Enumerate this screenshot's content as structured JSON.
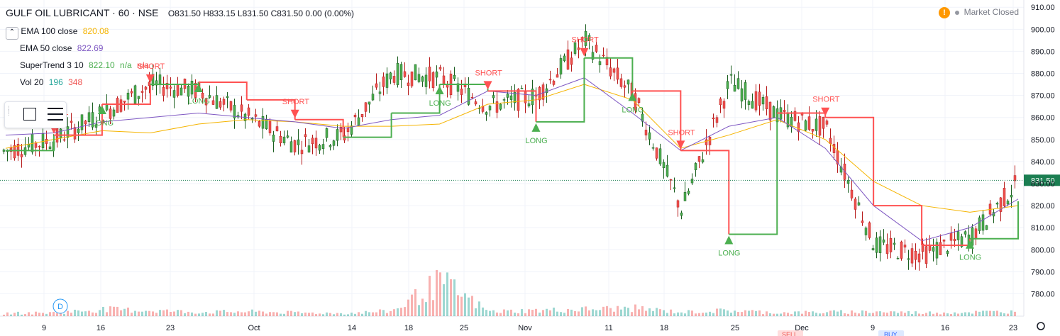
{
  "header": {
    "symbol": "GULF OIL LUBRICANT · 60 · NSE",
    "ohlc": "O831.50  H833.15  L831.50  C831.50  0.00 (0.00%)"
  },
  "legend": {
    "ema100_label": "EMA 100 close",
    "ema100_value": "820.08",
    "ema50_label": "EMA 50 close",
    "ema50_value": "822.69",
    "st_label": "SuperTrend 3 10",
    "st_value": "822.10",
    "st_na1": "n/a",
    "st_na2": "n/a",
    "vol_label": "Vol 20",
    "vol_value1": "196",
    "vol_value2": "348"
  },
  "status": {
    "text": "Market Closed",
    "badge": "!"
  },
  "colors": {
    "up": "#26a69a",
    "down": "#ef5350",
    "candle_up": "#1b5e20",
    "candle_down": "#b71c1c",
    "ema100": "#f5b400",
    "ema50": "#7e57c2",
    "st_up": "#4caf50",
    "st_down": "#ff5252",
    "last": "#1b7e52"
  },
  "chart_data": {
    "type": "line",
    "title": "GULF OIL LUBRICANT · 60 · NSE",
    "y_axis": {
      "min": 775,
      "max": 912,
      "ticks": [
        910,
        900,
        890,
        880,
        870,
        860,
        850,
        840,
        830,
        820,
        810,
        800,
        790,
        780
      ],
      "last_price": 831.5,
      "last_label": "831.50"
    },
    "x_ticks": [
      "9",
      "16",
      "23",
      "Oct",
      "14",
      "18",
      "25",
      "Nov",
      "11",
      "18",
      "25",
      "Dec",
      "9",
      "16",
      "23"
    ],
    "series": [
      {
        "name": "EMA 100 close",
        "values": [
          846,
          850,
          854,
          853,
          857,
          859,
          858,
          856,
          856,
          857,
          866,
          868,
          875,
          868,
          846,
          852,
          859,
          850,
          831,
          820,
          817,
          820
        ]
      },
      {
        "name": "EMA 50 close",
        "values": [
          852,
          853,
          858,
          860,
          862,
          860,
          858,
          855,
          859,
          861,
          872,
          870,
          878,
          862,
          845,
          856,
          860,
          846,
          820,
          804,
          810,
          823
        ]
      },
      {
        "name": "SuperTrend 3 10",
        "values": [
          845,
          852,
          866,
          875,
          876,
          868,
          859,
          851,
          862,
          875,
          872,
          858,
          887,
          872,
          845,
          807,
          862,
          860,
          820,
          802,
          805,
          822
        ]
      }
    ],
    "close": [
      845,
      850,
      862,
      875,
      872,
      860,
      848,
      852,
      880,
      878,
      865,
      870,
      895,
      870,
      818,
      876,
      861,
      855,
      802,
      798,
      806,
      831
    ],
    "volume": [
      5,
      6,
      12,
      10,
      7,
      8,
      6,
      5,
      9,
      60,
      8,
      10,
      12,
      14,
      7,
      10,
      6,
      7,
      8,
      6,
      7,
      8
    ],
    "signals": [
      {
        "type": "SHORT",
        "idx": 1
      },
      {
        "type": "SHORT",
        "idx": 3
      },
      {
        "type": "SHORT",
        "idx": 6
      },
      {
        "type": "SHORT",
        "idx": 10
      },
      {
        "type": "SHORT",
        "idx": 12
      },
      {
        "type": "SHORT",
        "idx": 14
      },
      {
        "type": "SHORT",
        "idx": 17
      },
      {
        "type": "LONG",
        "idx": 2
      },
      {
        "type": "LONG",
        "idx": 4
      },
      {
        "type": "LONG",
        "idx": 9
      },
      {
        "type": "LONG",
        "idx": 11
      },
      {
        "type": "LONG",
        "idx": 13
      },
      {
        "type": "LONG",
        "idx": 15
      },
      {
        "type": "LONG",
        "idx": 20
      }
    ],
    "markers": {
      "dividend": "D",
      "sell": "SELL",
      "buy": "BUY"
    }
  }
}
